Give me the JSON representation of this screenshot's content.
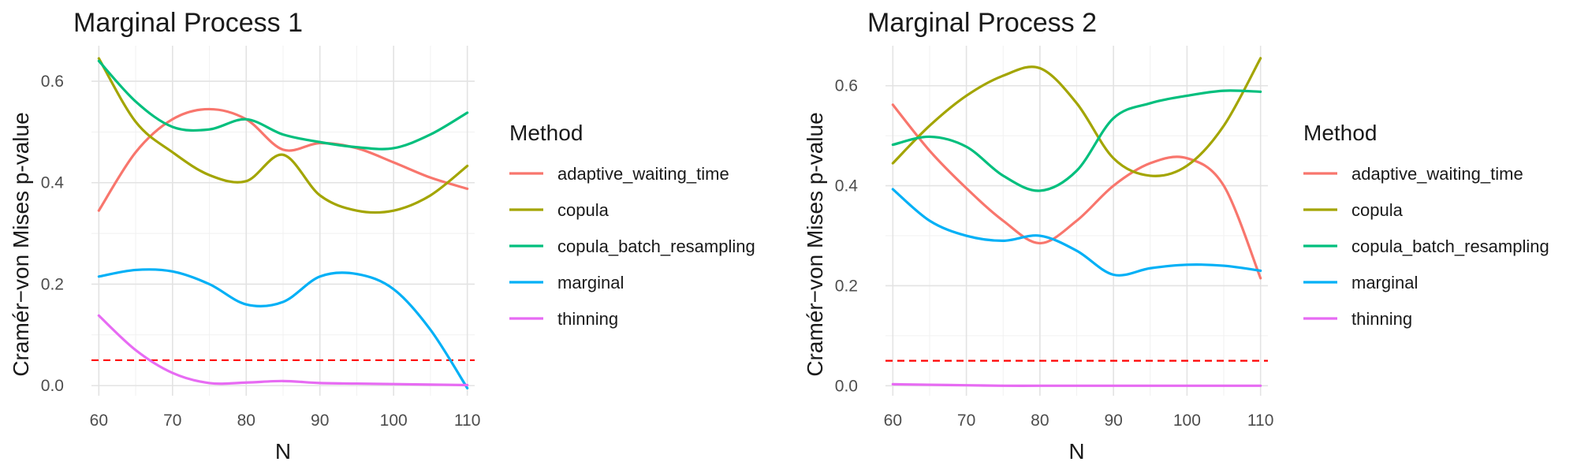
{
  "legend": {
    "title": "Method",
    "items": [
      {
        "name": "adaptive_waiting_time",
        "color": "#F8766D"
      },
      {
        "name": "copula",
        "color": "#A3A500"
      },
      {
        "name": "copula_batch_resampling",
        "color": "#00BF7D"
      },
      {
        "name": "marginal",
        "color": "#00B0F6"
      },
      {
        "name": "thinning",
        "color": "#E76BF3"
      }
    ]
  },
  "chart_data": [
    {
      "type": "line",
      "title": "Marginal Process 1",
      "xlabel": "N",
      "ylabel": "Cramér−von Mises p-value",
      "xlim": [
        59,
        111
      ],
      "ylim": [
        -0.02,
        0.67
      ],
      "x_ticks": [
        60,
        70,
        80,
        90,
        100,
        110
      ],
      "x_minor_ticks": [
        65,
        75,
        85,
        95,
        105
      ],
      "y_ticks": [
        0.0,
        0.2,
        0.4,
        0.6
      ],
      "y_tick_labels": [
        "0.0",
        "0.2",
        "0.4",
        "0.6"
      ],
      "y_minor_ticks": [
        0.1,
        0.3,
        0.5
      ],
      "reference_line": {
        "y": 0.05,
        "style": "dashed",
        "color": "#FF0000"
      },
      "x": [
        60,
        65,
        70,
        75,
        80,
        85,
        90,
        95,
        100,
        105,
        110
      ],
      "series": [
        {
          "name": "adaptive_waiting_time",
          "values": [
            0.345,
            0.46,
            0.525,
            0.545,
            0.525,
            0.465,
            0.478,
            0.468,
            0.44,
            0.41,
            0.388
          ]
        },
        {
          "name": "copula",
          "values": [
            0.645,
            0.52,
            0.46,
            0.415,
            0.403,
            0.455,
            0.375,
            0.345,
            0.345,
            0.375,
            0.433
          ]
        },
        {
          "name": "copula_batch_resampling",
          "values": [
            0.64,
            0.56,
            0.51,
            0.505,
            0.525,
            0.495,
            0.48,
            0.47,
            0.468,
            0.495,
            0.538
          ]
        },
        {
          "name": "marginal",
          "values": [
            0.215,
            0.228,
            0.225,
            0.2,
            0.16,
            0.165,
            0.215,
            0.22,
            0.19,
            0.11,
            -0.005
          ]
        },
        {
          "name": "thinning",
          "values": [
            0.138,
            0.07,
            0.025,
            0.005,
            0.006,
            0.009,
            0.005,
            0.004,
            0.003,
            0.002,
            0.001
          ]
        }
      ]
    },
    {
      "type": "line",
      "title": "Marginal Process 2",
      "xlabel": "N",
      "ylabel": "Cramér−von Mises p-value",
      "xlim": [
        59,
        111
      ],
      "ylim": [
        -0.02,
        0.68
      ],
      "x_ticks": [
        60,
        70,
        80,
        90,
        100,
        110
      ],
      "x_minor_ticks": [
        65,
        75,
        85,
        95,
        105
      ],
      "y_ticks": [
        0.0,
        0.2,
        0.4,
        0.6
      ],
      "y_tick_labels": [
        "0.0",
        "0.2",
        "0.4",
        "0.6"
      ],
      "y_minor_ticks": [
        0.1,
        0.3,
        0.5
      ],
      "reference_line": {
        "y": 0.05,
        "style": "dashed",
        "color": "#FF0000"
      },
      "x": [
        60,
        65,
        70,
        75,
        80,
        85,
        90,
        95,
        100,
        105,
        110
      ],
      "series": [
        {
          "name": "adaptive_waiting_time",
          "values": [
            0.562,
            0.47,
            0.395,
            0.33,
            0.285,
            0.33,
            0.4,
            0.445,
            0.455,
            0.4,
            0.215
          ]
        },
        {
          "name": "copula",
          "values": [
            0.445,
            0.52,
            0.58,
            0.62,
            0.635,
            0.565,
            0.455,
            0.42,
            0.44,
            0.52,
            0.655
          ]
        },
        {
          "name": "copula_batch_resampling",
          "values": [
            0.482,
            0.498,
            0.478,
            0.42,
            0.39,
            0.43,
            0.535,
            0.565,
            0.58,
            0.59,
            0.588
          ]
        },
        {
          "name": "marginal",
          "values": [
            0.393,
            0.33,
            0.3,
            0.29,
            0.3,
            0.27,
            0.222,
            0.235,
            0.242,
            0.24,
            0.23
          ]
        },
        {
          "name": "thinning",
          "values": [
            0.003,
            0.002,
            0.001,
            0.0,
            0.0,
            0.0,
            0.0,
            0.0,
            0.0,
            0.0,
            0.0
          ]
        }
      ]
    }
  ]
}
